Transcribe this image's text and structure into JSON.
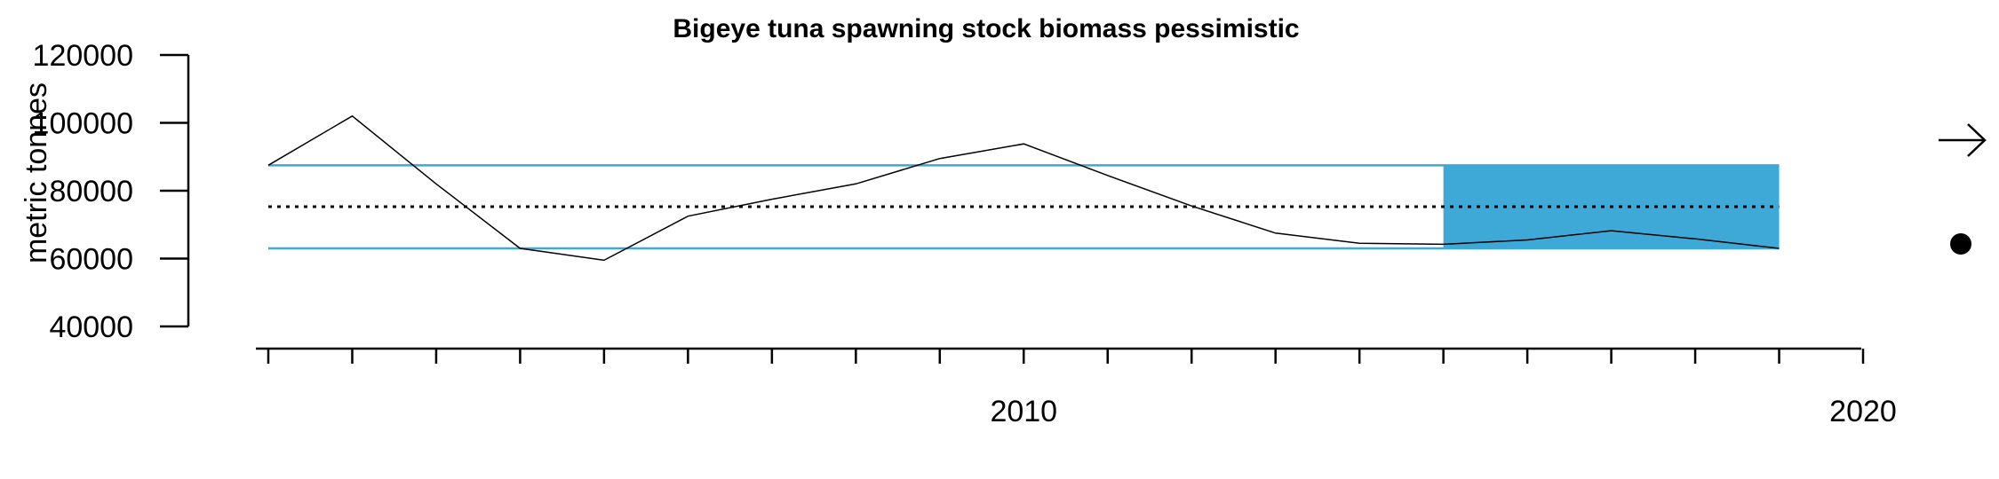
{
  "chart_data": {
    "type": "line",
    "title": "Bigeye tuna spawning stock biomass pessimistic",
    "xlabel": "",
    "ylabel": "metric tonnes",
    "xlim": [
      2000.8,
      2020
    ],
    "ylim": [
      40000,
      120000
    ],
    "yticks": [
      40000,
      60000,
      80000,
      100000,
      120000
    ],
    "ytick_labels": [
      "40000",
      "60000",
      "80000",
      "100000",
      "120000"
    ],
    "xticks_minor": [
      2001,
      2002,
      2003,
      2004,
      2005,
      2006,
      2007,
      2008,
      2009,
      2010,
      2011,
      2012,
      2013,
      2014,
      2015,
      2016,
      2017,
      2018,
      2019,
      2020
    ],
    "xtick_labels": [
      {
        "x": 2010,
        "label": "2010"
      },
      {
        "x": 2020,
        "label": "2020"
      }
    ],
    "series": [
      {
        "x": [
          2001,
          2002,
          2003,
          2004,
          2005,
          2006,
          2007,
          2008,
          2009,
          2010,
          2011,
          2012,
          2013,
          2014,
          2015,
          2016,
          2017,
          2018,
          2019
        ],
        "values": [
          87500,
          102000,
          82000,
          63000,
          59500,
          72500,
          77500,
          82000,
          89500,
          93800,
          84500,
          75500,
          67500,
          64500,
          64200,
          65500,
          68200,
          65800,
          63000
        ],
        "color": "#000000"
      }
    ],
    "reference_lines": {
      "mean": 75300,
      "upper": 87500,
      "lower": 63000,
      "mean_style": "dotted",
      "band_color": "#3ea9d6"
    },
    "shaded_region": {
      "x_start": 2015,
      "x_end": 2019,
      "y_low": 63000,
      "y_high": 87500,
      "color": "#3ea9d6"
    },
    "indicators": {
      "trend": "right-arrow-icon",
      "status": "filled-circle-icon"
    },
    "grid": false
  }
}
